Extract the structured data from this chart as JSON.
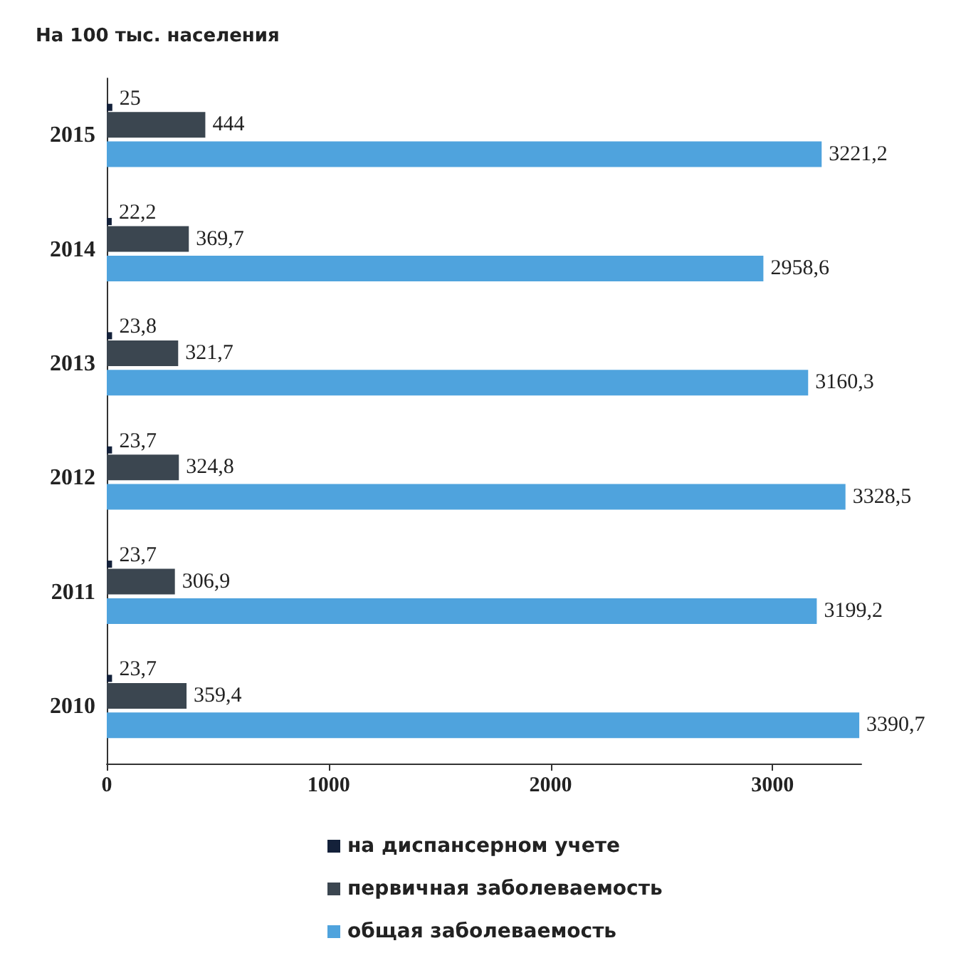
{
  "chart_data": {
    "type": "bar",
    "orientation": "horizontal",
    "title": "На 100 тыс. населения",
    "categories": [
      "2015",
      "2014",
      "2013",
      "2012",
      "2011",
      "2010"
    ],
    "series": [
      {
        "name": "на диспансерном учете",
        "color": "#14213a",
        "values": [
          25,
          22.2,
          23.8,
          23.7,
          23.7,
          23.7
        ],
        "value_labels": [
          "25",
          "22,2",
          "23,8",
          "23,7",
          "23,7",
          "23,7"
        ]
      },
      {
        "name": "первичная заболеваемость",
        "color": "#3b4650",
        "values": [
          444,
          369.7,
          321.7,
          324.8,
          306.9,
          359.4
        ],
        "value_labels": [
          "444",
          "369,7",
          "321,7",
          "324,8",
          "306,9",
          "359,4"
        ]
      },
      {
        "name": "общая заболеваемость",
        "color": "#4fa3dd",
        "values": [
          3221.2,
          2958.6,
          3160.3,
          3328.5,
          3199.2,
          3390.7
        ],
        "value_labels": [
          "3221,2",
          "2958,6",
          "3160,3",
          "3328,5",
          "3199,2",
          "3390,7"
        ]
      }
    ],
    "xlim": [
      0,
      3400
    ],
    "xticks": [
      0,
      1000,
      2000,
      3000
    ],
    "grid": false,
    "legend": "bottom"
  }
}
